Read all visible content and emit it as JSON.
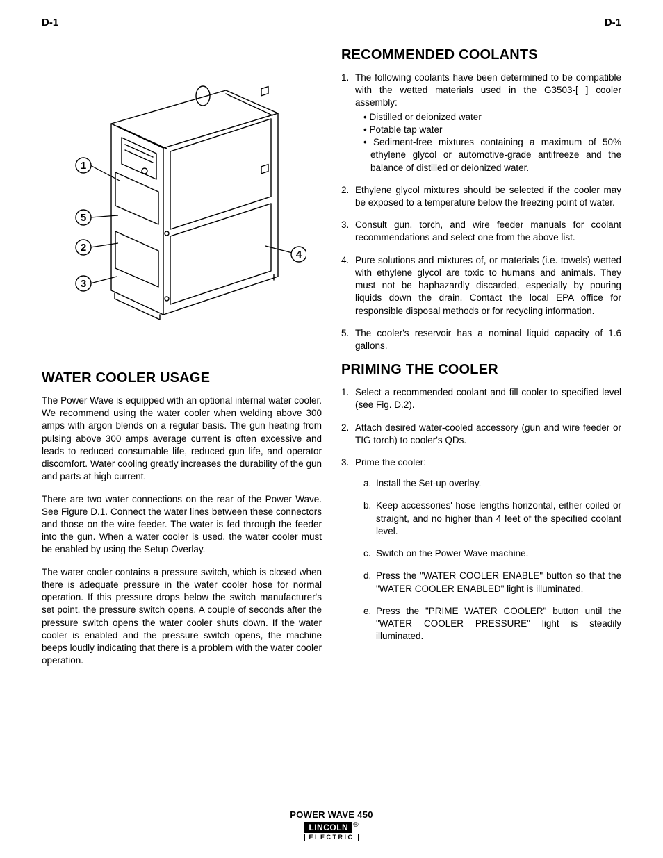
{
  "header": {
    "left": "D-1",
    "right": "D-1"
  },
  "diagram": {
    "callouts": [
      "1",
      "5",
      "2",
      "3",
      "4"
    ],
    "stroke": "#000000",
    "fill": "#ffffff",
    "stroke_width": 1.2
  },
  "left": {
    "h1": "WATER COOLER USAGE",
    "p1": "The Power Wave is equipped with an optional internal water cooler. We recommend using the water cooler when welding above 300 amps with argon blends on a regular basis. The gun heating from pulsing above 300 amps average current is often excessive and leads to reduced consumable life, reduced gun life, and operator discomfort. Water cooling greatly increases the durability of the gun and parts at high current.",
    "p2": "There are two water connections on the rear of the Power Wave. See Figure D.1. Connect the water lines between these connectors and those on the wire feeder. The water is fed through the feeder into the gun. When a water cooler is used, the water cooler must be enabled by using the Setup Overlay.",
    "p3": "The water cooler contains a pressure switch, which is closed when there is adequate pressure in the water cooler hose for normal operation. If this pressure drops below the switch manufacturer's set point, the pressure switch opens. A couple of seconds after the pressure switch opens the water cooler shuts down. If the water cooler is enabled and the pressure switch opens, the machine beeps loudly indicating that there is a problem with the water cooler operation."
  },
  "right": {
    "h1": "RECOMMENDED COOLANTS",
    "coolants": {
      "items": [
        {
          "n": "1.",
          "text": "The following coolants have been determined to be compatible with the wetted materials used in the G3503-[ ] cooler assembly:",
          "bullets": [
            "Distilled or deionized water",
            "Potable tap water",
            "Sediment-free mixtures containing a maximum of 50% ethylene glycol or automotive-grade antifreeze and the balance of distilled or deionized water."
          ]
        },
        {
          "n": "2.",
          "text": "Ethylene glycol mixtures should be selected if the cooler may be exposed to a temperature below the freezing point of water."
        },
        {
          "n": "3.",
          "text": "Consult gun, torch, and wire feeder manuals for coolant recommendations and select one from the above list."
        },
        {
          "n": "4.",
          "text": "Pure solutions and mixtures of, or materials (i.e. towels) wetted with ethylene glycol are toxic to humans and animals. They must not be haphazardly discarded, especially by pouring liquids down the drain. Contact the local EPA office for responsible disposal methods or for recycling information."
        },
        {
          "n": "5.",
          "text": "The cooler's reservoir has a nominal liquid capacity of 1.6 gallons."
        }
      ]
    },
    "h2": "PRIMING THE COOLER",
    "priming": {
      "items": [
        {
          "n": "1.",
          "text": "Select a recommended coolant and fill cooler to specified level (see Fig. D.2)."
        },
        {
          "n": "2.",
          "text": "Attach desired water-cooled accessory (gun and wire feeder or TIG torch) to cooler's QDs."
        },
        {
          "n": "3.",
          "text": "Prime the cooler:",
          "sub": [
            {
              "n": "a.",
              "text": "Install the Set-up overlay."
            },
            {
              "n": "b.",
              "text": "Keep accessories' hose lengths horizontal, either coiled or straight, and no higher than 4 feet of the specified coolant level."
            },
            {
              "n": "c.",
              "text": "Switch on the Power Wave machine."
            },
            {
              "n": "d.",
              "text": "Press the \"WATER COOLER ENABLE\" button so that the \"WATER COOLER ENABLED\" light is illuminated."
            },
            {
              "n": "e.",
              "text": "Press the \"PRIME WATER COOLER\" button until the \"WATER COOLER PRESSURE\" light is steadily illuminated."
            }
          ]
        }
      ]
    }
  },
  "footer": {
    "product": "POWER WAVE 450",
    "brand_top": "LINCOLN",
    "brand_bottom": "ELECTRIC",
    "reg": "®"
  }
}
